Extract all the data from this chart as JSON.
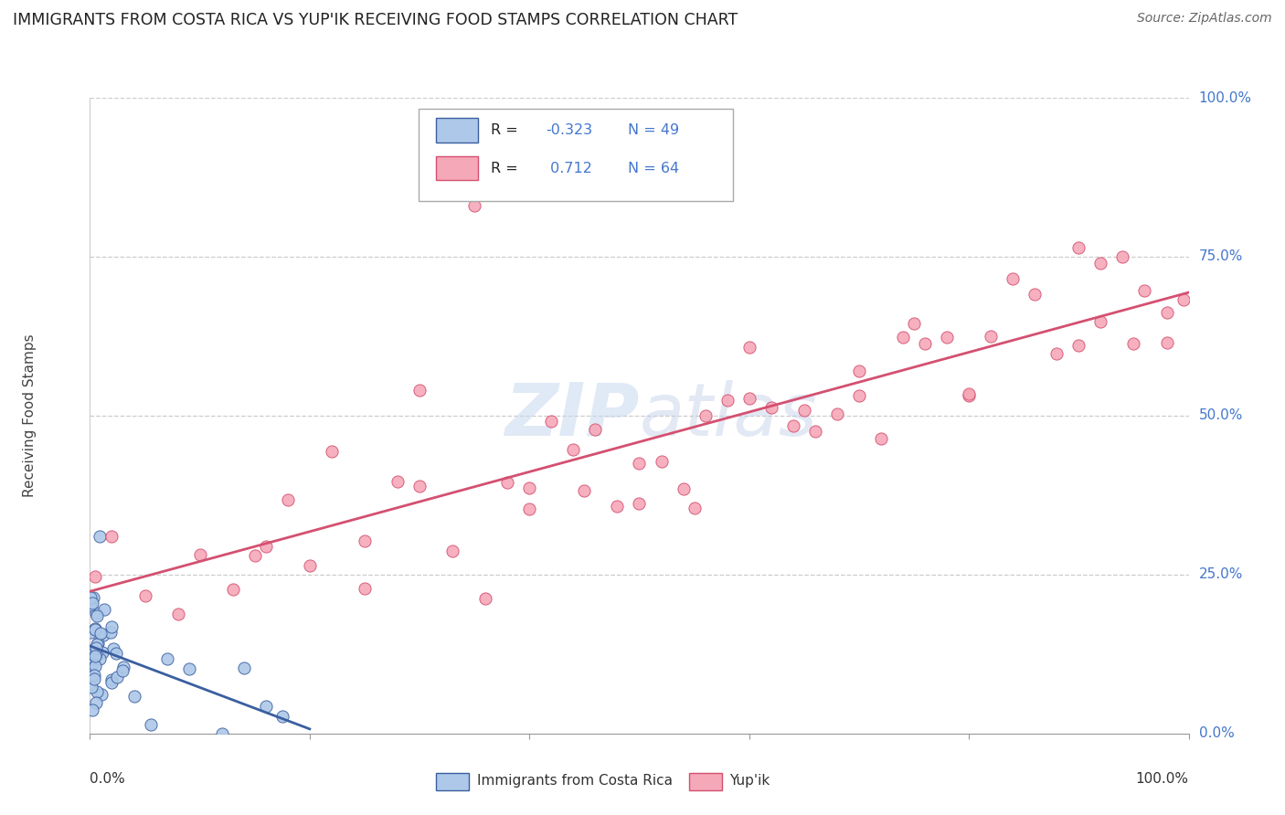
{
  "title": "IMMIGRANTS FROM COSTA RICA VS YUP'IK RECEIVING FOOD STAMPS CORRELATION CHART",
  "source": "Source: ZipAtlas.com",
  "ylabel": "Receiving Food Stamps",
  "watermark_zip": "ZIP",
  "watermark_atlas": "atlas",
  "legend_labels": [
    "Immigrants from Costa Rica",
    "Yup'ik"
  ],
  "r_costa_rica": -0.323,
  "n_costa_rica": 49,
  "r_yupik": 0.712,
  "n_yupik": 64,
  "costa_rica_color": "#adc8e8",
  "yupik_color": "#f5a8b8",
  "trend_costa_rica_color": "#3a5fa0",
  "trend_yupik_color": "#d45070",
  "ytick_labels": [
    "0.0%",
    "25.0%",
    "50.0%",
    "75.0%",
    "100.0%"
  ],
  "ytick_values": [
    0.0,
    0.25,
    0.5,
    0.75,
    1.0
  ],
  "background_color": "#ffffff",
  "grid_color": "#cccccc",
  "right_label_color": "#4477cc"
}
